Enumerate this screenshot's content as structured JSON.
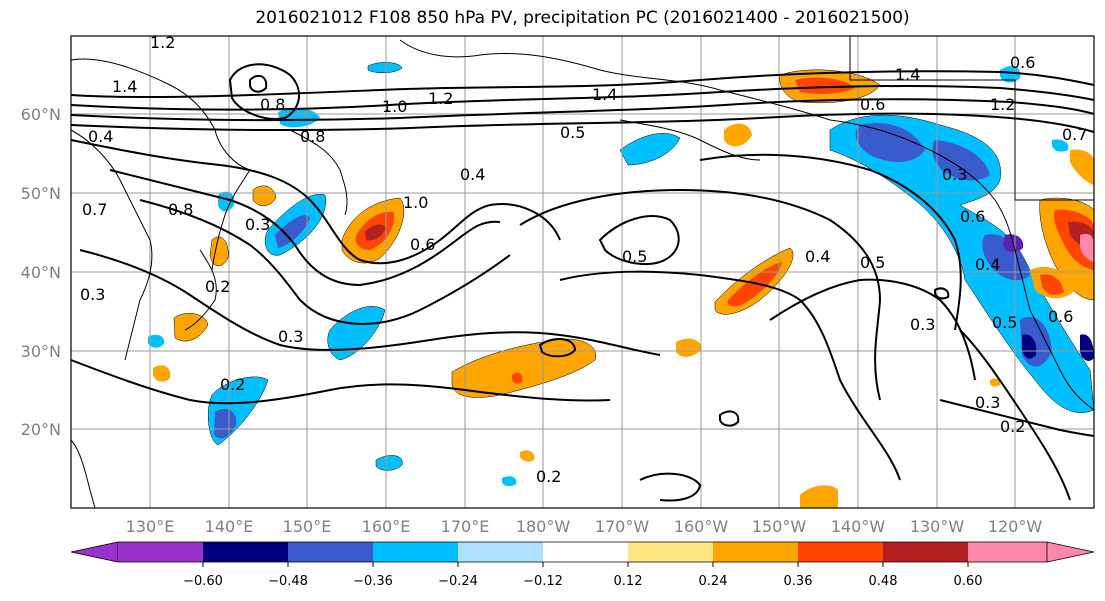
{
  "title": "2016021012 F108 850 hPa PV, precipitation PC (2016021400 - 2016021500)",
  "map": {
    "lon_labels": [
      "130°E",
      "140°E",
      "150°E",
      "160°E",
      "170°E",
      "180°W",
      "170°W",
      "160°W",
      "150°W",
      "140°W",
      "130°W",
      "120°W"
    ],
    "lat_labels": [
      "60°N",
      "50°N",
      "40°N",
      "30°N",
      "20°N"
    ],
    "grid": true
  },
  "colorbar": {
    "tick_labels": [
      "−0.60",
      "−0.48",
      "−0.36",
      "−0.24",
      "−0.12",
      "0.12",
      "0.24",
      "0.36",
      "0.48",
      "0.60"
    ],
    "colors": [
      "#9932CC",
      "#000080",
      "#3A5BCC",
      "#00BFFF",
      "#B0E0FF",
      "#FFFFFF",
      "#FFE680",
      "#FFA500",
      "#FF4500",
      "#B22222",
      "#FF88AA"
    ]
  },
  "contour_labels": [
    "1.2",
    "1.4",
    "0.8",
    "1.0",
    "1.2",
    "1.4",
    "0.5",
    "0.6",
    "1.4",
    "1.2",
    "0.6",
    "0.7",
    "0.4",
    "0.4",
    "0.8",
    "0.7",
    "0.8",
    "0.3",
    "1.0",
    "0.6",
    "0.5",
    "0.4",
    "0.5",
    "0.2",
    "0.3",
    "0.3",
    "0.3",
    "0.2",
    "0.2",
    "0.3",
    "0.2",
    "0.5",
    "0.6",
    "0.3",
    "0.4",
    "0.6"
  ]
}
